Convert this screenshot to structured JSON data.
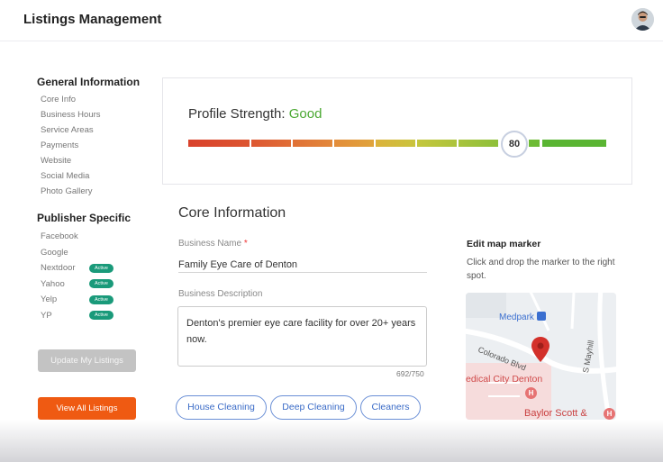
{
  "app": {
    "title": "Listings Management"
  },
  "sidebar": {
    "general_heading": "General Information",
    "general_items": [
      {
        "label": "Core Info"
      },
      {
        "label": "Business Hours"
      },
      {
        "label": "Service Areas"
      },
      {
        "label": "Payments"
      },
      {
        "label": "Website"
      },
      {
        "label": "Social Media"
      },
      {
        "label": "Photo Gallery"
      }
    ],
    "publisher_heading": "Publisher Specific",
    "publisher_items": [
      {
        "label": "Facebook",
        "status": ""
      },
      {
        "label": "Google",
        "status": ""
      },
      {
        "label": "Nextdoor",
        "status": "Active"
      },
      {
        "label": "Yahoo",
        "status": "Active"
      },
      {
        "label": "Yelp",
        "status": "Active"
      },
      {
        "label": "YP",
        "status": "Active"
      }
    ],
    "update_button": "Update My Listings",
    "view_all_button": "View All Listings"
  },
  "profile_strength": {
    "label": "Profile Strength:",
    "value": "Good",
    "score": "80",
    "score_fraction": 0.8,
    "colors": {
      "good": "#4aa832",
      "low": "#d9412b"
    }
  },
  "core": {
    "heading": "Core Information",
    "business_name_label": "Business Name",
    "required_mark": "*",
    "business_name_value": "Family Eye Care of Denton",
    "description_label": "Business Description",
    "description_value": "Denton's premier eye care facility for over 20+ years now.",
    "char_count": "692/750",
    "chips": [
      {
        "label": "House Cleaning"
      },
      {
        "label": "Deep Cleaning"
      },
      {
        "label": "Cleaners"
      }
    ]
  },
  "map": {
    "heading": "Edit map marker",
    "help": "Click and drop the marker to the right spot.",
    "labels": {
      "medpark": "Medpark",
      "colorado": "Colorado Blvd",
      "mayhill": "S Mayhill",
      "medical_city": "edical City Denton",
      "baylor": "Baylor Scott &"
    }
  },
  "accent_colors": {
    "primary": "#ef5a12",
    "chip": "#3a6bc7",
    "badge": "#1a9a7a"
  }
}
